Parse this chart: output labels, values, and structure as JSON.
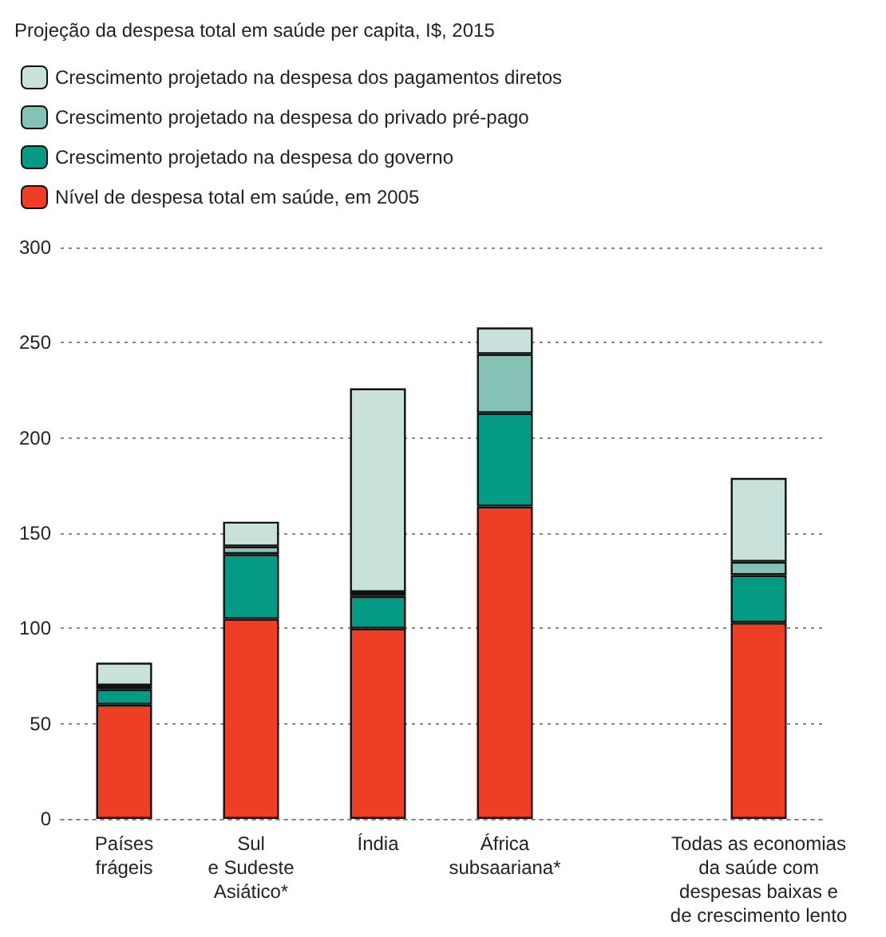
{
  "chart_data": {
    "type": "bar",
    "title": "Projeção da despesa total em saúde per capita, I$, 2015",
    "categories": [
      "Países\nfrágeis",
      "Sul\ne Sudeste\nAsiático*",
      "Índia",
      "África\nsubsaariana*",
      null,
      "Todas as economias\nda saúde com\ndespesas baixas e\nde crescimento lento"
    ],
    "stacked": true,
    "series": [
      {
        "name": "Nível de despesa total em saúde, em 2005",
        "color": "#ee3f26",
        "values": [
          60,
          105,
          100,
          164,
          null,
          103
        ]
      },
      {
        "name": "Crescimento projetado na despesa do governo",
        "color": "#049a83",
        "values": [
          8,
          34,
          17,
          49,
          null,
          25
        ]
      },
      {
        "name": "Crescimento projetado na despesa do privado pré-pago",
        "color": "#86c1b6",
        "values": [
          2,
          4,
          2,
          31,
          null,
          7
        ]
      },
      {
        "name": "Crescimento projetado na despesa dos pagamentos diretos",
        "color": "#c9e1db",
        "values": [
          12,
          13,
          107,
          14,
          null,
          44
        ]
      }
    ],
    "ylim": [
      0,
      300
    ],
    "yticks": [
      0,
      50,
      100,
      150,
      200,
      250,
      300
    ],
    "grid": "y",
    "legend": "top left"
  }
}
